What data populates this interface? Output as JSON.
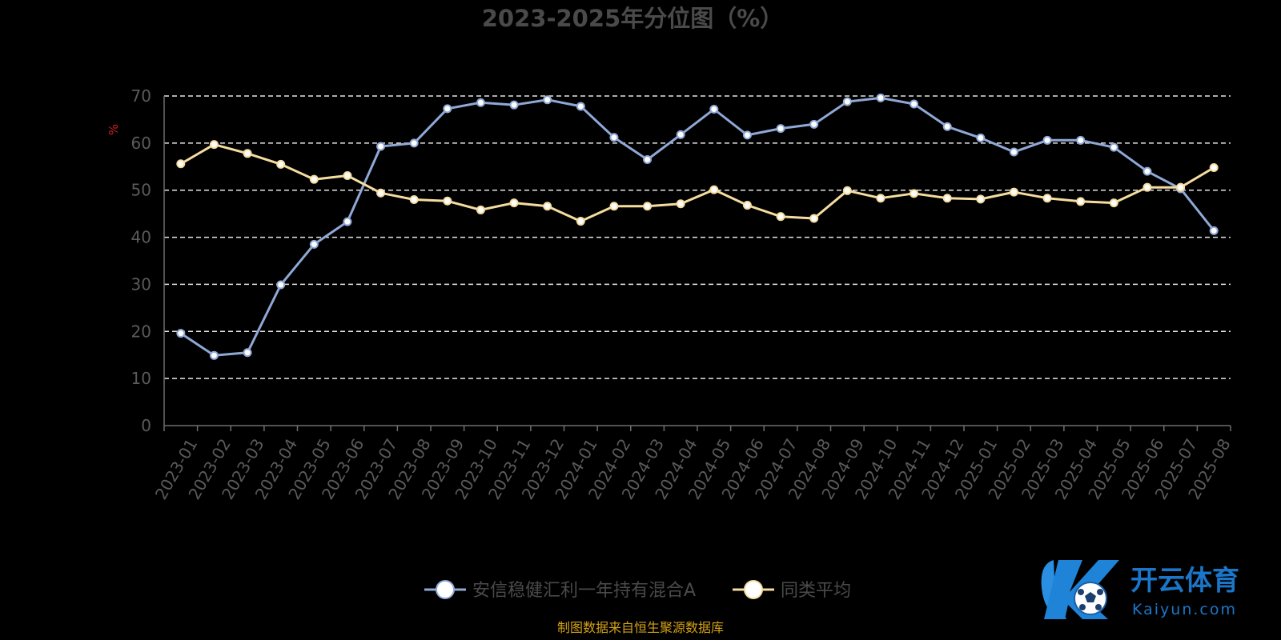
{
  "chart_data": {
    "type": "line",
    "title": "2023-2025年分位图（%）",
    "ylabel": "%",
    "ylim": [
      0,
      70
    ],
    "yticks": [
      0,
      10,
      20,
      30,
      40,
      50,
      60,
      70
    ],
    "grid": true,
    "legend_position": "bottom",
    "categories": [
      "2023-01",
      "2023-02",
      "2023-03",
      "2023-04",
      "2023-05",
      "2023-06",
      "2023-07",
      "2023-08",
      "2023-09",
      "2023-10",
      "2023-11",
      "2023-12",
      "2024-01",
      "2024-02",
      "2024-03",
      "2024-04",
      "2024-05",
      "2024-06",
      "2024-07",
      "2024-08",
      "2024-09",
      "2024-10",
      "2024-11",
      "2024-12",
      "2025-01",
      "2025-02",
      "2025-03",
      "2025-04",
      "2025-05",
      "2025-06",
      "2025-07",
      "2025-08"
    ],
    "series": [
      {
        "name": "安信稳健汇利一年持有混合A",
        "color": "#8fa8d6",
        "values": [
          19.6,
          14.9,
          15.5,
          29.9,
          38.5,
          43.3,
          59.3,
          60.0,
          67.3,
          68.6,
          68.1,
          69.2,
          67.8,
          61.2,
          56.5,
          61.8,
          67.2,
          61.7,
          63.1,
          64.0,
          68.8,
          69.6,
          68.3,
          63.5,
          61.1,
          58.1,
          60.6,
          60.6,
          59.1,
          54.0,
          50.3,
          41.4
        ]
      },
      {
        "name": "同类平均",
        "color": "#f5dca0",
        "values": [
          55.6,
          59.7,
          57.8,
          55.5,
          52.3,
          53.1,
          49.4,
          48.0,
          47.7,
          45.8,
          47.3,
          46.6,
          43.4,
          46.6,
          46.6,
          47.1,
          50.1,
          46.8,
          44.4,
          44.0,
          49.9,
          48.3,
          49.3,
          48.3,
          48.1,
          49.6,
          48.3,
          47.6,
          47.3,
          50.6,
          50.6,
          54.8
        ]
      }
    ]
  },
  "source_text": "制图数据来自恒生聚源数据库",
  "watermark": {
    "cn": "开云体育",
    "en": "Kaiyun.com",
    "color": "#1b76c9"
  }
}
